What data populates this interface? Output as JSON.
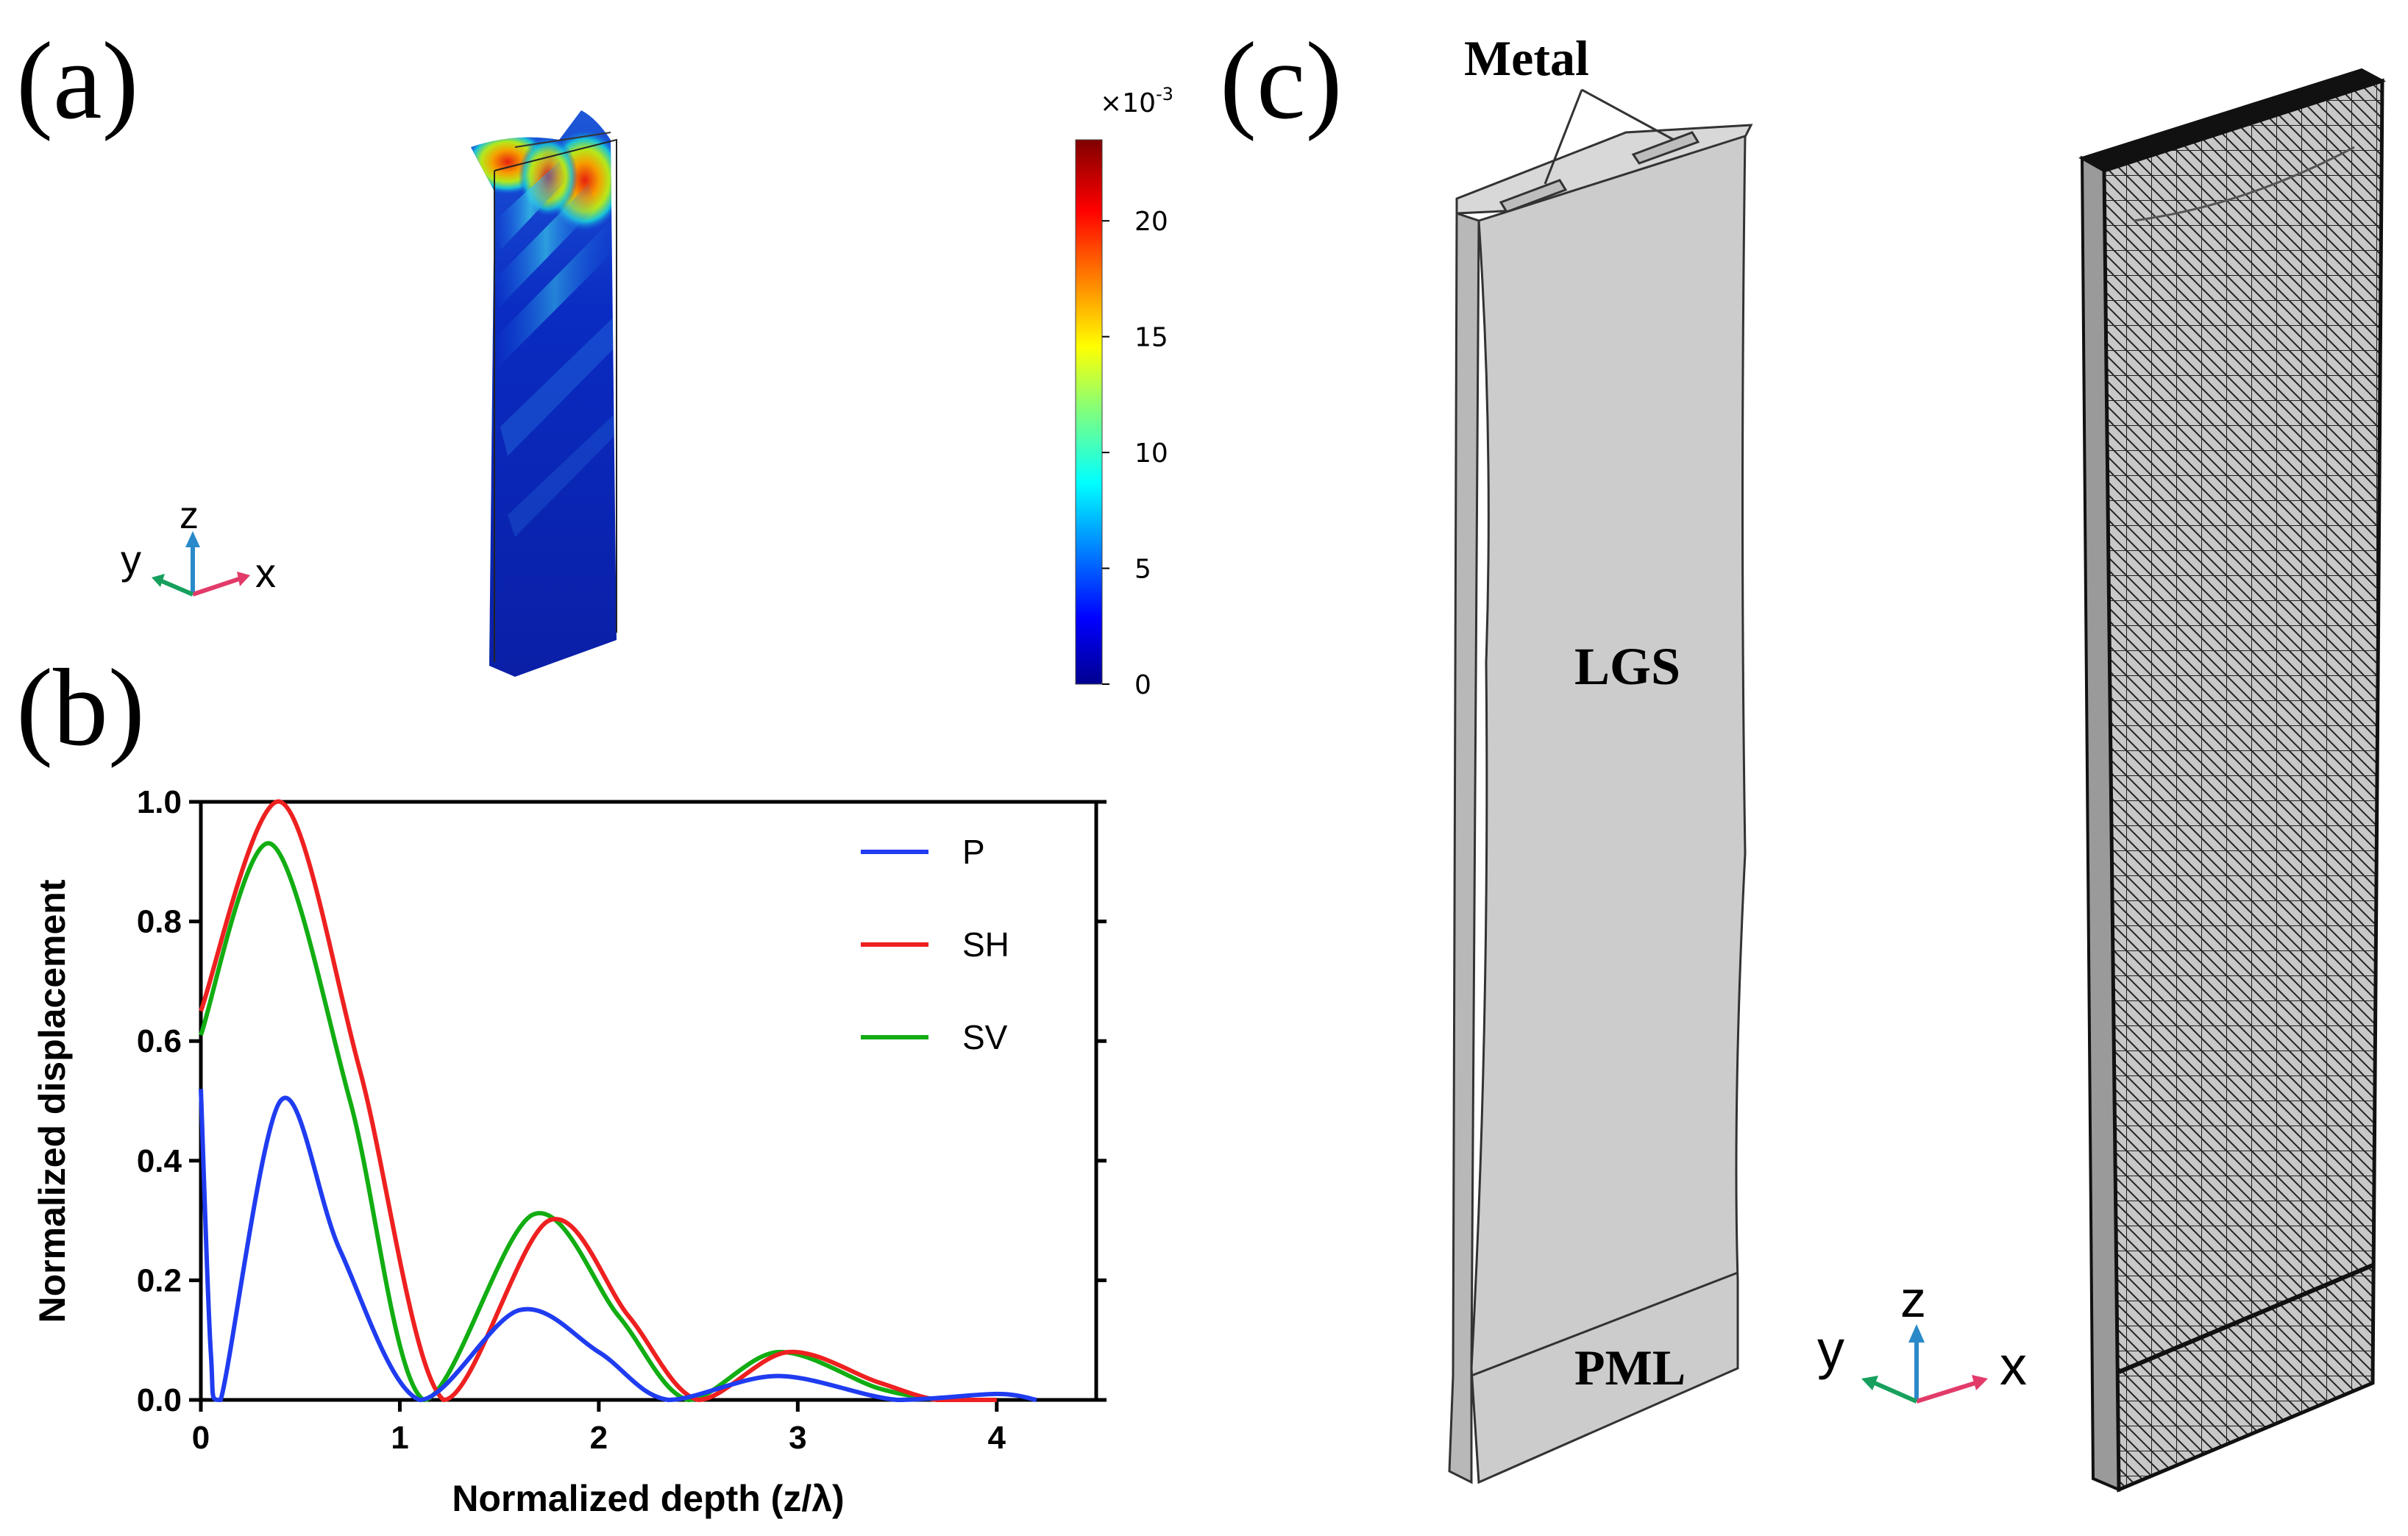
{
  "panels": {
    "a": "(a)",
    "b": "(b)",
    "c": "(c)"
  },
  "colors": {
    "P": "#1f3cf0",
    "SH": "#ee2020",
    "SV": "#12ad12",
    "geometry_fill": "#cccccc",
    "edge": "#333333"
  },
  "panel_a": {
    "colorbar": {
      "scale_label": "×10",
      "scale_exp": "-3",
      "ticks": [
        "20",
        "15",
        "10",
        "5",
        "0"
      ],
      "range": [
        0,
        23.5
      ]
    },
    "axes": {
      "z": "z",
      "y": "y",
      "x": "x"
    }
  },
  "panel_c": {
    "labels": {
      "metal": "Metal",
      "substrate": "LGS",
      "pml": "PML"
    },
    "axes": {
      "z": "z",
      "y": "y",
      "x": "x"
    }
  },
  "chart_data": {
    "type": "line",
    "title": "",
    "xlabel": "Normalized depth (z/λ)",
    "ylabel": "Normalized displacement",
    "xlim": [
      0,
      4.5
    ],
    "ylim": [
      0,
      1.0
    ],
    "xticks": [
      "0",
      "1",
      "2",
      "3",
      "4"
    ],
    "yticks": [
      "0.0",
      "0.2",
      "0.4",
      "0.6",
      "0.8",
      "1.0"
    ],
    "legend_position": "top-right",
    "series": [
      {
        "name": "P",
        "x": [
          0,
          0.05,
          0.1,
          0.4,
          0.7,
          1.1,
          1.6,
          2.0,
          2.35,
          2.9,
          3.5,
          4.0,
          4.2
        ],
        "y": [
          0.52,
          0.08,
          0.0,
          0.5,
          0.25,
          0.0,
          0.15,
          0.08,
          0.0,
          0.04,
          0.0,
          0.01,
          0.0
        ]
      },
      {
        "name": "SH",
        "x": [
          0,
          0.4,
          0.8,
          1.22,
          1.75,
          2.15,
          2.5,
          2.95,
          3.4,
          3.7,
          4.0
        ],
        "y": [
          0.65,
          1.0,
          0.55,
          0.0,
          0.3,
          0.14,
          0.0,
          0.08,
          0.03,
          0.0,
          0.0
        ]
      },
      {
        "name": "SV",
        "x": [
          0,
          0.35,
          0.75,
          1.12,
          1.67,
          2.1,
          2.45,
          2.9,
          3.4,
          3.7
        ],
        "y": [
          0.61,
          0.93,
          0.5,
          0.0,
          0.31,
          0.14,
          0.0,
          0.08,
          0.02,
          0.0
        ]
      }
    ]
  }
}
